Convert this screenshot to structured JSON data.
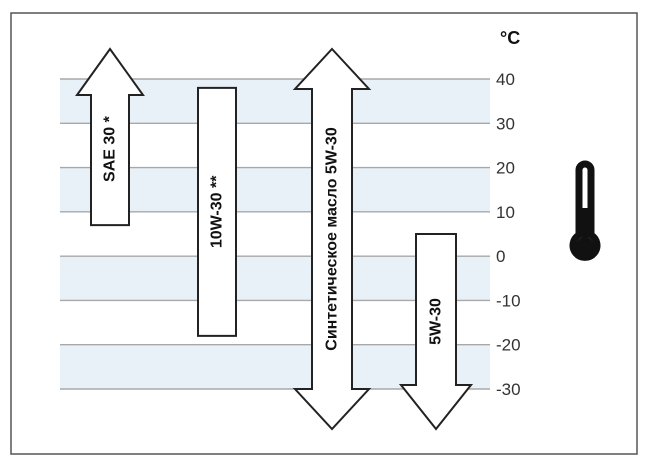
{
  "unit_label": "°C",
  "scale": {
    "ticks": [
      40,
      30,
      20,
      10,
      0,
      -10,
      -20,
      -30
    ]
  },
  "oils": [
    {
      "label": "SAE 30 *",
      "min": 7,
      "max": 40,
      "arrow_up": true,
      "arrow_down": false
    },
    {
      "label": "10W-30 **",
      "min": -18,
      "max": 38,
      "arrow_up": false,
      "arrow_down": false
    },
    {
      "label": "Синтетическое масло 5W-30",
      "min": -30,
      "max": 40,
      "arrow_up": true,
      "arrow_down": true
    },
    {
      "label": "5W-30",
      "min": -30,
      "max": 5,
      "arrow_up": false,
      "arrow_down": true
    }
  ],
  "colors": {
    "band": "#e9f1f8",
    "grid": "#a8a8a8",
    "frame": "#555555",
    "shape_fill": "#ffffff",
    "shape_stroke": "#222222",
    "thermometer": "#111111"
  },
  "icon": "thermometer-icon"
}
